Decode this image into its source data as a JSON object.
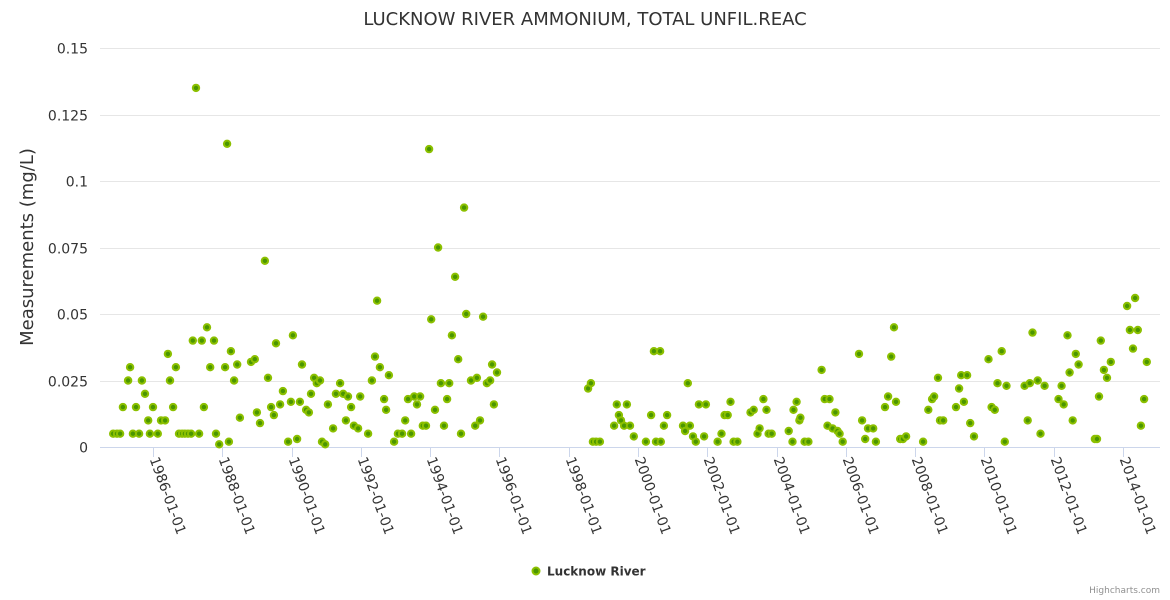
{
  "chart_data": {
    "type": "scatter",
    "title": "LUCKNOW RIVER AMMONIUM, TOTAL UNFIL.REAC",
    "xlabel": "",
    "ylabel": "Measurements (mg/L)",
    "ylim": [
      0,
      0.15
    ],
    "xlim": [
      1984.47,
      2015.07
    ],
    "yticks": [
      0,
      0.025,
      0.05,
      0.075,
      0.1,
      0.125,
      0.15
    ],
    "ytick_labels": [
      "0",
      "0.025",
      "0.05",
      "0.075",
      "0.1",
      "0.125",
      "0.15"
    ],
    "xticks": [
      1986,
      1988,
      1990,
      1992,
      1994,
      1996,
      1998,
      2000,
      2002,
      2004,
      2006,
      2008,
      2010,
      2012,
      2014
    ],
    "xtick_labels": [
      "1986-01-01",
      "1988-01-01",
      "1990-01-01",
      "1992-01-01",
      "1994-01-01",
      "1996-01-01",
      "1998-01-01",
      "2000-01-01",
      "2002-01-01",
      "2004-01-01",
      "2006-01-01",
      "2008-01-01",
      "2010-01-01",
      "2012-01-01",
      "2014-01-01"
    ],
    "grid": true,
    "legend_position": "bottom-center",
    "series": [
      {
        "name": "Lucknow River",
        "color": "#7cb800",
        "points": [
          [
            1984.85,
            0.005
          ],
          [
            1984.96,
            0.005
          ],
          [
            1985.05,
            0.005
          ],
          [
            1985.13,
            0.015
          ],
          [
            1985.28,
            0.025
          ],
          [
            1985.34,
            0.03
          ],
          [
            1985.42,
            0.005
          ],
          [
            1985.51,
            0.015
          ],
          [
            1985.6,
            0.005
          ],
          [
            1985.68,
            0.025
          ],
          [
            1985.77,
            0.02
          ],
          [
            1985.86,
            0.01
          ],
          [
            1985.91,
            0.005
          ],
          [
            1986.0,
            0.015
          ],
          [
            1986.14,
            0.005
          ],
          [
            1986.23,
            0.01
          ],
          [
            1986.35,
            0.01
          ],
          [
            1986.43,
            0.035
          ],
          [
            1986.49,
            0.025
          ],
          [
            1986.58,
            0.015
          ],
          [
            1986.66,
            0.03
          ],
          [
            1986.75,
            0.005
          ],
          [
            1986.84,
            0.005
          ],
          [
            1986.92,
            0.005
          ],
          [
            1987.01,
            0.005
          ],
          [
            1987.1,
            0.005
          ],
          [
            1987.15,
            0.04
          ],
          [
            1987.24,
            0.135
          ],
          [
            1987.33,
            0.005
          ],
          [
            1987.41,
            0.04
          ],
          [
            1987.47,
            0.015
          ],
          [
            1987.56,
            0.045
          ],
          [
            1987.65,
            0.03
          ],
          [
            1987.76,
            0.04
          ],
          [
            1987.82,
            0.005
          ],
          [
            1987.91,
            0.001
          ],
          [
            1988.08,
            0.03
          ],
          [
            1988.14,
            0.114
          ],
          [
            1988.19,
            0.002
          ],
          [
            1988.25,
            0.036
          ],
          [
            1988.34,
            0.025
          ],
          [
            1988.43,
            0.031
          ],
          [
            1988.51,
            0.011
          ],
          [
            1988.83,
            0.032
          ],
          [
            1988.94,
            0.033
          ],
          [
            1989.0,
            0.013
          ],
          [
            1989.09,
            0.009
          ],
          [
            1989.23,
            0.07
          ],
          [
            1989.32,
            0.026
          ],
          [
            1989.41,
            0.015
          ],
          [
            1989.49,
            0.012
          ],
          [
            1989.55,
            0.039
          ],
          [
            1989.67,
            0.016
          ],
          [
            1989.75,
            0.021
          ],
          [
            1989.9,
            0.002
          ],
          [
            1989.98,
            0.017
          ],
          [
            1990.04,
            0.042
          ],
          [
            1990.16,
            0.003
          ],
          [
            1990.24,
            0.017
          ],
          [
            1990.3,
            0.031
          ],
          [
            1990.42,
            0.014
          ],
          [
            1990.5,
            0.013
          ],
          [
            1990.56,
            0.02
          ],
          [
            1990.65,
            0.026
          ],
          [
            1990.73,
            0.024
          ],
          [
            1990.82,
            0.025
          ],
          [
            1990.88,
            0.002
          ],
          [
            1990.97,
            0.001
          ],
          [
            1991.05,
            0.016
          ],
          [
            1991.2,
            0.007
          ],
          [
            1991.28,
            0.02
          ],
          [
            1991.4,
            0.024
          ],
          [
            1991.49,
            0.02
          ],
          [
            1991.57,
            0.01
          ],
          [
            1991.63,
            0.019
          ],
          [
            1991.72,
            0.015
          ],
          [
            1991.8,
            0.008
          ],
          [
            1991.92,
            0.007
          ],
          [
            1991.98,
            0.019
          ],
          [
            1992.21,
            0.005
          ],
          [
            1992.32,
            0.025
          ],
          [
            1992.41,
            0.034
          ],
          [
            1992.47,
            0.055
          ],
          [
            1992.55,
            0.03
          ],
          [
            1992.67,
            0.018
          ],
          [
            1992.73,
            0.014
          ],
          [
            1992.81,
            0.027
          ],
          [
            1992.96,
            0.002
          ],
          [
            1993.07,
            0.005
          ],
          [
            1993.19,
            0.005
          ],
          [
            1993.28,
            0.01
          ],
          [
            1993.36,
            0.018
          ],
          [
            1993.45,
            0.005
          ],
          [
            1993.54,
            0.019
          ],
          [
            1993.62,
            0.016
          ],
          [
            1993.71,
            0.019
          ],
          [
            1993.79,
            0.008
          ],
          [
            1993.88,
            0.008
          ],
          [
            1993.97,
            0.112
          ],
          [
            1994.03,
            0.048
          ],
          [
            1994.14,
            0.014
          ],
          [
            1994.23,
            0.075
          ],
          [
            1994.31,
            0.024
          ],
          [
            1994.4,
            0.008
          ],
          [
            1994.49,
            0.018
          ],
          [
            1994.55,
            0.024
          ],
          [
            1994.63,
            0.042
          ],
          [
            1994.72,
            0.064
          ],
          [
            1994.81,
            0.033
          ],
          [
            1994.89,
            0.005
          ],
          [
            1994.98,
            0.09
          ],
          [
            1995.04,
            0.05
          ],
          [
            1995.18,
            0.025
          ],
          [
            1995.3,
            0.008
          ],
          [
            1995.35,
            0.026
          ],
          [
            1995.44,
            0.01
          ],
          [
            1995.53,
            0.049
          ],
          [
            1995.64,
            0.024
          ],
          [
            1995.73,
            0.025
          ],
          [
            1995.79,
            0.031
          ],
          [
            1995.84,
            0.016
          ],
          [
            1995.93,
            0.028
          ],
          [
            1998.56,
            0.022
          ],
          [
            1998.64,
            0.024
          ],
          [
            1998.7,
            0.002
          ],
          [
            1998.79,
            0.002
          ],
          [
            1998.9,
            0.002
          ],
          [
            1999.31,
            0.008
          ],
          [
            1999.39,
            0.016
          ],
          [
            1999.45,
            0.012
          ],
          [
            1999.51,
            0.01
          ],
          [
            1999.6,
            0.008
          ],
          [
            1999.68,
            0.016
          ],
          [
            1999.77,
            0.008
          ],
          [
            1999.88,
            0.004
          ],
          [
            2000.23,
            0.002
          ],
          [
            2000.38,
            0.012
          ],
          [
            2000.46,
            0.036
          ],
          [
            2000.52,
            0.002
          ],
          [
            2000.64,
            0.036
          ],
          [
            2000.66,
            0.002
          ],
          [
            2000.75,
            0.008
          ],
          [
            2000.84,
            0.012
          ],
          [
            2001.3,
            0.008
          ],
          [
            2001.36,
            0.006
          ],
          [
            2001.44,
            0.024
          ],
          [
            2001.5,
            0.008
          ],
          [
            2001.59,
            0.004
          ],
          [
            2001.67,
            0.002
          ],
          [
            2001.76,
            0.016
          ],
          [
            2001.91,
            0.004
          ],
          [
            2001.96,
            0.016
          ],
          [
            2002.3,
            0.002
          ],
          [
            2002.41,
            0.005
          ],
          [
            2002.5,
            0.012
          ],
          [
            2002.59,
            0.012
          ],
          [
            2002.67,
            0.017
          ],
          [
            2002.76,
            0.002
          ],
          [
            2002.87,
            0.002
          ],
          [
            2003.25,
            0.013
          ],
          [
            2003.34,
            0.014
          ],
          [
            2003.45,
            0.005
          ],
          [
            2003.51,
            0.007
          ],
          [
            2003.62,
            0.018
          ],
          [
            2003.71,
            0.014
          ],
          [
            2003.77,
            0.005
          ],
          [
            2003.86,
            0.005
          ],
          [
            2004.35,
            0.006
          ],
          [
            2004.46,
            0.002
          ],
          [
            2004.49,
            0.014
          ],
          [
            2004.58,
            0.017
          ],
          [
            2004.66,
            0.01
          ],
          [
            2004.69,
            0.011
          ],
          [
            2004.81,
            0.002
          ],
          [
            2004.92,
            0.002
          ],
          [
            2005.3,
            0.029
          ],
          [
            2005.39,
            0.018
          ],
          [
            2005.47,
            0.008
          ],
          [
            2005.53,
            0.018
          ],
          [
            2005.62,
            0.007
          ],
          [
            2005.7,
            0.013
          ],
          [
            2005.76,
            0.006
          ],
          [
            2005.82,
            0.005
          ],
          [
            2005.91,
            0.002
          ],
          [
            2006.38,
            0.035
          ],
          [
            2006.47,
            0.01
          ],
          [
            2006.56,
            0.003
          ],
          [
            2006.64,
            0.007
          ],
          [
            2006.79,
            0.007
          ],
          [
            2006.87,
            0.002
          ],
          [
            2007.13,
            0.015
          ],
          [
            2007.22,
            0.019
          ],
          [
            2007.31,
            0.034
          ],
          [
            2007.39,
            0.045
          ],
          [
            2007.45,
            0.017
          ],
          [
            2007.57,
            0.003
          ],
          [
            2007.65,
            0.003
          ],
          [
            2007.74,
            0.004
          ],
          [
            2008.23,
            0.002
          ],
          [
            2008.38,
            0.014
          ],
          [
            2008.49,
            0.018
          ],
          [
            2008.55,
            0.019
          ],
          [
            2008.66,
            0.026
          ],
          [
            2008.72,
            0.01
          ],
          [
            2008.81,
            0.01
          ],
          [
            2009.18,
            0.015
          ],
          [
            2009.27,
            0.022
          ],
          [
            2009.33,
            0.027
          ],
          [
            2009.41,
            0.017
          ],
          [
            2009.5,
            0.027
          ],
          [
            2009.59,
            0.009
          ],
          [
            2009.7,
            0.004
          ],
          [
            2010.12,
            0.033
          ],
          [
            2010.21,
            0.015
          ],
          [
            2010.3,
            0.014
          ],
          [
            2010.38,
            0.024
          ],
          [
            2010.5,
            0.036
          ],
          [
            2010.59,
            0.002
          ],
          [
            2010.64,
            0.023
          ],
          [
            2011.16,
            0.023
          ],
          [
            2011.25,
            0.01
          ],
          [
            2011.31,
            0.024
          ],
          [
            2011.39,
            0.043
          ],
          [
            2011.54,
            0.025
          ],
          [
            2011.62,
            0.005
          ],
          [
            2011.74,
            0.023
          ],
          [
            2012.14,
            0.018
          ],
          [
            2012.23,
            0.023
          ],
          [
            2012.29,
            0.016
          ],
          [
            2012.4,
            0.042
          ],
          [
            2012.46,
            0.028
          ],
          [
            2012.55,
            0.01
          ],
          [
            2012.64,
            0.035
          ],
          [
            2012.72,
            0.031
          ],
          [
            2013.19,
            0.003
          ],
          [
            2013.25,
            0.003
          ],
          [
            2013.31,
            0.019
          ],
          [
            2013.36,
            0.04
          ],
          [
            2013.45,
            0.029
          ],
          [
            2013.54,
            0.026
          ],
          [
            2013.65,
            0.032
          ],
          [
            2014.12,
            0.053
          ],
          [
            2014.2,
            0.044
          ],
          [
            2014.29,
            0.037
          ],
          [
            2014.35,
            0.056
          ],
          [
            2014.43,
            0.044
          ],
          [
            2014.52,
            0.008
          ],
          [
            2014.61,
            0.018
          ],
          [
            2014.69,
            0.032
          ]
        ]
      }
    ]
  },
  "credits": "Highcharts.com"
}
